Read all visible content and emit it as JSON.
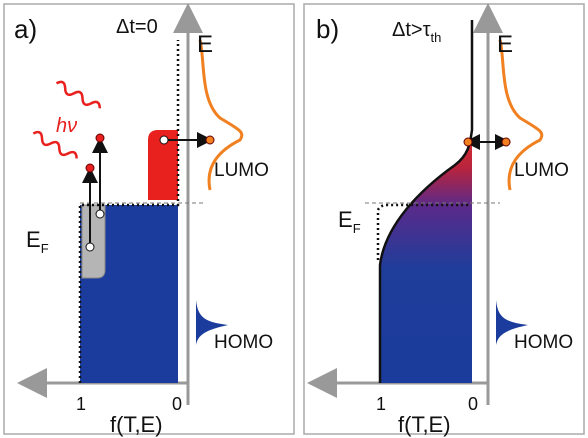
{
  "panel_a": {
    "label": "a)",
    "time": "Δt=0",
    "axis_e": "E",
    "fermi": {
      "text": "E",
      "sub": "F"
    },
    "photon": "hν",
    "lumo": "LUMO",
    "homo": "HOMO",
    "tick_one": "1",
    "tick_zero": "0",
    "axis_f": "f(T,E)"
  },
  "panel_b": {
    "label": "b)",
    "time": {
      "text": "Δt>τ",
      "sub": "th"
    },
    "axis_e": "E",
    "fermi": {
      "text": "E",
      "sub": "F"
    },
    "lumo": "LUMO",
    "homo": "HOMO",
    "tick_one": "1",
    "tick_zero": "0",
    "axis_f": "f(T,E)"
  }
}
